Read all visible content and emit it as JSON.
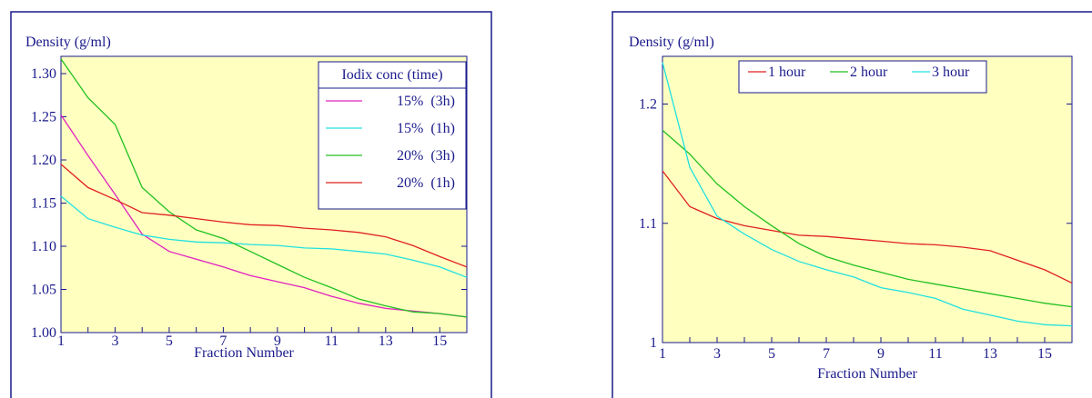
{
  "chart_data": [
    {
      "type": "line",
      "ylabel": "Density (g/ml)",
      "xlabel": "Fraction Number",
      "xlim": [
        1,
        16
      ],
      "ylim": [
        1.0,
        1.32
      ],
      "xticks": [
        "1",
        "3",
        "5",
        "7",
        "9",
        "11",
        "13",
        "15"
      ],
      "yticks": [
        "1.00",
        "1.05",
        "1.10",
        "1.15",
        "1.20",
        "1.25",
        "1.30"
      ],
      "legend_title": "Iodix conc (time)",
      "legend_position": "top-right",
      "x": [
        1,
        2,
        3,
        4,
        5,
        6,
        7,
        8,
        9,
        10,
        11,
        12,
        13,
        14,
        15,
        16
      ],
      "series": [
        {
          "name": "15%  (3h)",
          "color": "#e020c0",
          "values": [
            1.252,
            1.205,
            1.16,
            1.114,
            1.094,
            1.085,
            1.076,
            1.066,
            1.059,
            1.052,
            1.042,
            1.034,
            1.028,
            1.025,
            1.022,
            1.018
          ]
        },
        {
          "name": "15%  (1h)",
          "color": "#20e0e0",
          "values": [
            1.158,
            1.132,
            1.122,
            1.113,
            1.108,
            1.105,
            1.104,
            1.102,
            1.101,
            1.098,
            1.097,
            1.094,
            1.091,
            1.084,
            1.076,
            1.064
          ]
        },
        {
          "name": "20%  (3h)",
          "color": "#20c020",
          "values": [
            1.317,
            1.272,
            1.241,
            1.168,
            1.14,
            1.119,
            1.109,
            1.094,
            1.079,
            1.064,
            1.052,
            1.039,
            1.031,
            1.024,
            1.022,
            1.018
          ]
        },
        {
          "name": "20%  (1h)",
          "color": "#e02020",
          "values": [
            1.195,
            1.168,
            1.154,
            1.139,
            1.136,
            1.132,
            1.128,
            1.125,
            1.124,
            1.121,
            1.119,
            1.116,
            1.111,
            1.101,
            1.088,
            1.076
          ]
        }
      ]
    },
    {
      "type": "line",
      "ylabel": "Density (g/ml)",
      "xlabel": "Fraction Number",
      "xlim": [
        1,
        16
      ],
      "ylim": [
        1.0,
        1.24
      ],
      "xticks": [
        "1",
        "3",
        "5",
        "7",
        "9",
        "11",
        "13",
        "15"
      ],
      "yticks": [
        "1",
        "1.1",
        "1.2"
      ],
      "legend_position": "top-center",
      "x": [
        1,
        2,
        3,
        4,
        5,
        6,
        7,
        8,
        9,
        10,
        11,
        12,
        13,
        14,
        15,
        16
      ],
      "series": [
        {
          "name": "1 hour",
          "color": "#e02020",
          "values": [
            1.144,
            1.114,
            1.104,
            1.098,
            1.094,
            1.09,
            1.089,
            1.087,
            1.085,
            1.083,
            1.082,
            1.08,
            1.077,
            1.069,
            1.061,
            1.05
          ]
        },
        {
          "name": "2 hour",
          "color": "#20c020",
          "values": [
            1.178,
            1.158,
            1.133,
            1.114,
            1.098,
            1.083,
            1.072,
            1.065,
            1.059,
            1.053,
            1.049,
            1.045,
            1.041,
            1.037,
            1.033,
            1.03
          ]
        },
        {
          "name": "3 hour",
          "color": "#20e0e0",
          "values": [
            1.235,
            1.147,
            1.106,
            1.091,
            1.078,
            1.068,
            1.061,
            1.055,
            1.046,
            1.042,
            1.037,
            1.028,
            1.023,
            1.018,
            1.015,
            1.014
          ]
        }
      ]
    }
  ]
}
